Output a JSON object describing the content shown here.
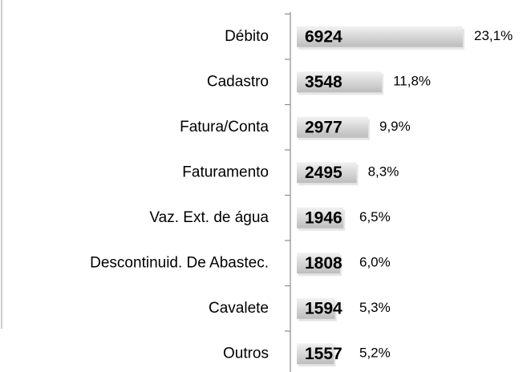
{
  "chart_data": {
    "type": "bar",
    "categories": [
      "Débito",
      "Cadastro",
      "Fatura/Conta",
      "Faturamento",
      "Vaz. Ext. de água",
      "Descontinuid. De Abastec.",
      "Cavalete",
      "Outros"
    ],
    "values": [
      6924,
      3548,
      2977,
      2495,
      1946,
      1808,
      1594,
      1557
    ],
    "shares": [
      23.1,
      11.8,
      9.9,
      8.3,
      6.5,
      6.0,
      5.3,
      5.2
    ],
    "share_labels": [
      "23,1%",
      "11,8%",
      "9,9%",
      "8,3%",
      "6,5%",
      "6,0%",
      "5,3%",
      "5,2%"
    ],
    "color": "#d0d0d0"
  }
}
